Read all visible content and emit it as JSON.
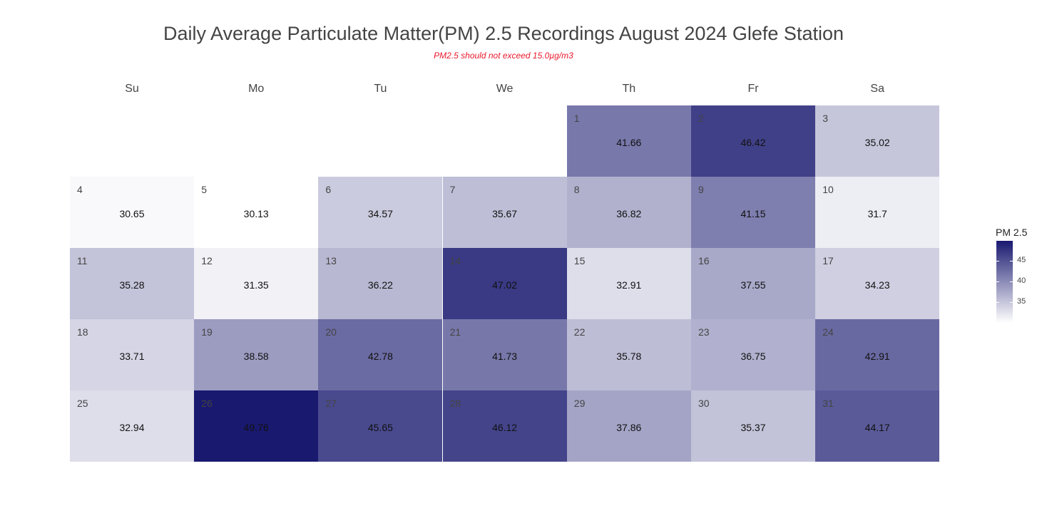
{
  "chart_data": {
    "type": "heatmap",
    "title": "Daily Average Particulate Matter(PM) 2.5 Recordings August 2024 Glefe Station",
    "subtitle": "PM2.5 should not exceed 15.0µg/m3",
    "weekdays": [
      "Su",
      "Mo",
      "Tu",
      "We",
      "Th",
      "Fr",
      "Sa"
    ],
    "first_weekday_index": 4,
    "days": [
      {
        "day": "1",
        "value": 41.66,
        "label": "41.66"
      },
      {
        "day": "2",
        "value": 46.42,
        "label": "46.42"
      },
      {
        "day": "3",
        "value": 35.02,
        "label": "35.02"
      },
      {
        "day": "4",
        "value": 30.65,
        "label": "30.65"
      },
      {
        "day": "5",
        "value": 30.13,
        "label": "30.13"
      },
      {
        "day": "6",
        "value": 34.57,
        "label": "34.57"
      },
      {
        "day": "7",
        "value": 35.67,
        "label": "35.67"
      },
      {
        "day": "8",
        "value": 36.82,
        "label": "36.82"
      },
      {
        "day": "9",
        "value": 41.15,
        "label": "41.15"
      },
      {
        "day": "10",
        "value": 31.7,
        "label": "31.7"
      },
      {
        "day": "11",
        "value": 35.28,
        "label": "35.28"
      },
      {
        "day": "12",
        "value": 31.35,
        "label": "31.35"
      },
      {
        "day": "13",
        "value": 36.22,
        "label": "36.22"
      },
      {
        "day": "14",
        "value": 47.02,
        "label": "47.02"
      },
      {
        "day": "15",
        "value": 32.91,
        "label": "32.91"
      },
      {
        "day": "16",
        "value": 37.55,
        "label": "37.55"
      },
      {
        "day": "17",
        "value": 34.23,
        "label": "34.23"
      },
      {
        "day": "18",
        "value": 33.71,
        "label": "33.71"
      },
      {
        "day": "19",
        "value": 38.58,
        "label": "38.58"
      },
      {
        "day": "20",
        "value": 42.78,
        "label": "42.78"
      },
      {
        "day": "21",
        "value": 41.73,
        "label": "41.73"
      },
      {
        "day": "22",
        "value": 35.78,
        "label": "35.78"
      },
      {
        "day": "23",
        "value": 36.75,
        "label": "36.75"
      },
      {
        "day": "24",
        "value": 42.91,
        "label": "42.91"
      },
      {
        "day": "25",
        "value": 32.94,
        "label": "32.94"
      },
      {
        "day": "26",
        "value": 49.76,
        "label": "49.76"
      },
      {
        "day": "27",
        "value": 45.65,
        "label": "45.65"
      },
      {
        "day": "28",
        "value": 46.12,
        "label": "46.12"
      },
      {
        "day": "29",
        "value": 37.86,
        "label": "37.86"
      },
      {
        "day": "30",
        "value": 35.37,
        "label": "35.37"
      },
      {
        "day": "31",
        "value": 44.17,
        "label": "44.17"
      }
    ],
    "color_scale": {
      "low": "#ffffff",
      "high": "#191970",
      "min": 30.13,
      "max": 49.76
    },
    "legend": {
      "title": "PM 2.5",
      "ticks": [
        45,
        40,
        35
      ],
      "position": "right"
    }
  }
}
